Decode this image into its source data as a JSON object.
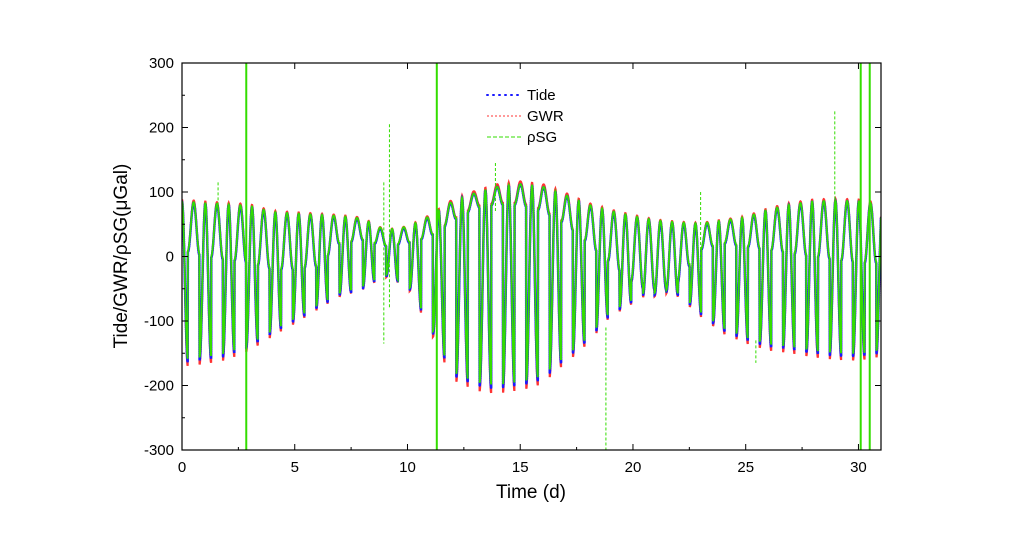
{
  "chart_data": {
    "type": "line",
    "title": "",
    "xlabel": "Time (d)",
    "ylabel": "Tide/GWR/ρSG(μGal)",
    "xlim": [
      0,
      31
    ],
    "ylim": [
      -300,
      300
    ],
    "xticks": [
      0,
      5,
      10,
      15,
      20,
      25,
      30
    ],
    "yticks": [
      -300,
      -200,
      -100,
      0,
      100,
      200,
      300
    ],
    "legend_position": "top-center",
    "grid": false,
    "series": [
      {
        "name": "Tide",
        "style": "dotted-markers",
        "color": "#1a1aff"
      },
      {
        "name": "GWR",
        "style": "dotted",
        "color": "#ff3333"
      },
      {
        "name": "ρSG",
        "style": "dashed",
        "color": "#33dd00"
      }
    ],
    "envelope": {
      "t": [
        0,
        1,
        2,
        3,
        4,
        5,
        6,
        7,
        8,
        9,
        10,
        11,
        12,
        13,
        14,
        15,
        16,
        17,
        18,
        19,
        20,
        21,
        22,
        23,
        24,
        25,
        26,
        27,
        28,
        29,
        30,
        31
      ],
      "highs": [
        85,
        82,
        80,
        78,
        68,
        66,
        64,
        62,
        58,
        40,
        45,
        62,
        85,
        98,
        108,
        112,
        108,
        95,
        80,
        70,
        62,
        55,
        52,
        50,
        55,
        60,
        72,
        80,
        85,
        86,
        85,
        80
      ],
      "lows": [
        -165,
        -160,
        -155,
        -140,
        -120,
        -100,
        -80,
        -60,
        -50,
        -30,
        -45,
        -110,
        -185,
        -200,
        -205,
        -200,
        -190,
        -160,
        -130,
        -90,
        -70,
        -50,
        -60,
        -90,
        -115,
        -130,
        -140,
        -145,
        -150,
        -155,
        -155,
        -150
      ],
      "mid_high": [
        10,
        0,
        -5,
        -10,
        -20,
        -20,
        -15,
        20,
        25,
        15,
        20,
        30,
        55,
        75,
        80,
        80,
        70,
        50,
        20,
        -10,
        -40,
        -60,
        -40,
        10,
        20,
        15,
        10,
        5,
        0,
        -5,
        -10,
        -10
      ]
    },
    "spikes": [
      {
        "t": 2.85,
        "min": -300,
        "max": 300
      },
      {
        "t": 11.3,
        "min": -300,
        "max": 300
      },
      {
        "t": 9.2,
        "min": -80,
        "max": 205
      },
      {
        "t": 8.95,
        "min": -135,
        "max": 115
      },
      {
        "t": 18.8,
        "min": -300,
        "max": -110
      },
      {
        "t": 13.9,
        "min": 70,
        "max": 145
      },
      {
        "t": 28.95,
        "min": 60,
        "max": 225
      },
      {
        "t": 23.0,
        "min": -20,
        "max": 100
      },
      {
        "t": 25.45,
        "min": -165,
        "max": -130
      },
      {
        "t": 1.6,
        "min": 80,
        "max": 115
      },
      {
        "t": 30.1,
        "min": -300,
        "max": 300
      },
      {
        "t": 30.5,
        "min": -300,
        "max": 300
      }
    ]
  }
}
